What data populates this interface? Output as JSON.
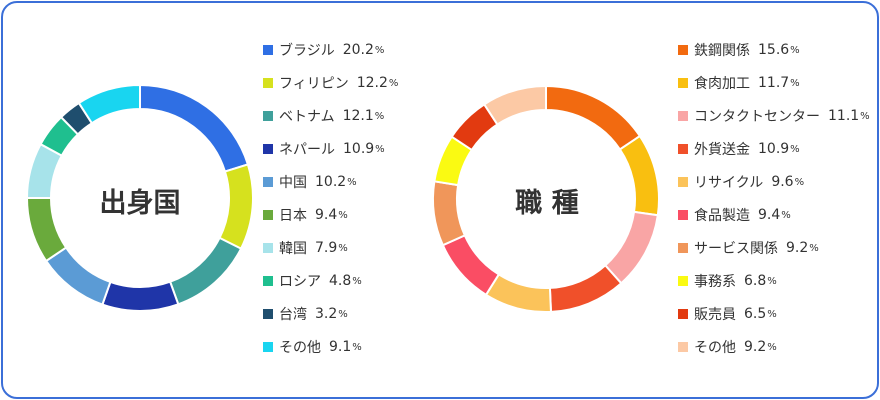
{
  "chart_data": [
    {
      "type": "pie",
      "title": "出身国",
      "unit": "%",
      "categories": [
        "ブラジル",
        "フィリピン",
        "ベトナム",
        "ネパール",
        "中国",
        "日本",
        "韓国",
        "ロシア",
        "台湾",
        "その他"
      ],
      "values": [
        20.2,
        12.2,
        12.1,
        10.9,
        10.2,
        9.4,
        7.9,
        4.8,
        3.2,
        9.1
      ],
      "colors": [
        "#2f6fe4",
        "#d6e11e",
        "#3fa09b",
        "#1f35a8",
        "#5b9bd5",
        "#6aaa3c",
        "#a7e3ea",
        "#1fbf8f",
        "#1f4e6e",
        "#19d5f0"
      ],
      "legend": "right"
    },
    {
      "type": "pie",
      "title": "職 種",
      "unit": "%",
      "categories": [
        "鉄鋼関係",
        "食肉加工",
        "コンタクトセンター",
        "外貨送金",
        "リサイクル",
        "食品製造",
        "サービス関係",
        "事務系",
        "販売員",
        "その他"
      ],
      "values": [
        15.6,
        11.7,
        11.1,
        10.9,
        9.6,
        9.4,
        9.2,
        6.8,
        6.5,
        9.2
      ],
      "colors": [
        "#f26a10",
        "#f9bf10",
        "#f9a5a5",
        "#f0502a",
        "#fbc35a",
        "#fa4d64",
        "#f0965a",
        "#fafa12",
        "#e23a10",
        "#fcc9a5"
      ],
      "legend": "right"
    }
  ]
}
